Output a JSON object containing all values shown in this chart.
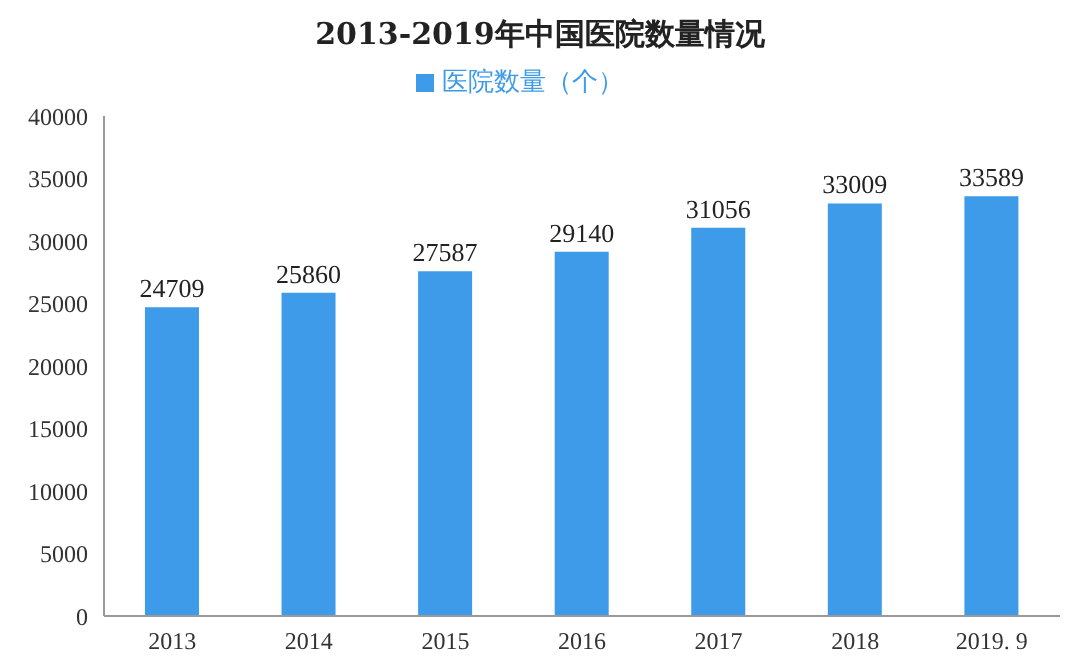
{
  "chart_data": {
    "type": "bar",
    "title": "2013-2019年中国医院数量情况",
    "categories": [
      "2013",
      "2014",
      "2015",
      "2016",
      "2017",
      "2018",
      "2019. 9"
    ],
    "series": [
      {
        "name": "医院数量（个）",
        "color": "#3d9be9",
        "values": [
          24709,
          25860,
          27587,
          29140,
          31056,
          33009,
          33589
        ]
      }
    ],
    "ylim": [
      0,
      40000
    ],
    "yticks": [
      0,
      5000,
      10000,
      15000,
      20000,
      25000,
      30000,
      35000,
      40000
    ],
    "grid": false,
    "legend": "top",
    "data_labels": true
  }
}
